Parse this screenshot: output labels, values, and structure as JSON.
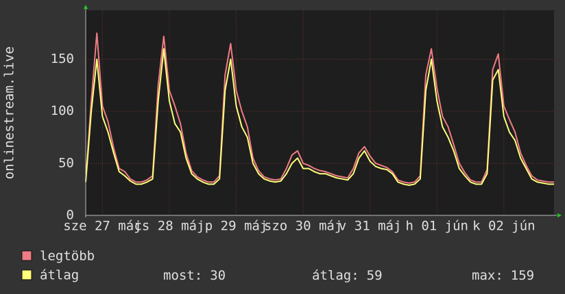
{
  "chart_data": {
    "type": "line",
    "y_label": "onlinestream.live",
    "x": [
      0,
      2,
      4,
      6,
      8,
      10,
      12,
      14,
      16,
      18,
      20,
      22,
      24,
      26,
      28,
      30,
      32,
      34,
      36,
      38,
      40,
      42,
      44,
      46,
      48,
      50,
      52,
      54,
      56,
      58,
      60,
      62,
      64,
      66,
      68,
      70,
      72,
      74,
      76,
      78,
      80,
      82,
      84,
      86,
      88,
      90,
      92,
      94,
      96,
      98,
      100,
      102,
      104,
      106,
      108,
      110,
      112,
      114,
      116,
      118,
      120,
      122,
      124,
      126,
      128,
      130,
      132,
      134,
      136,
      138,
      140,
      142,
      144,
      146,
      148,
      150,
      152,
      154,
      156,
      158,
      160,
      162,
      164,
      166,
      168
    ],
    "xlim": [
      0,
      168
    ],
    "xticks": [
      {
        "value": 6,
        "label": "sze 27 máj"
      },
      {
        "value": 30,
        "label": "cs 28 máj"
      },
      {
        "value": 54,
        "label": "p 29 máj"
      },
      {
        "value": 78,
        "label": "szo 30 máj"
      },
      {
        "value": 102,
        "label": "v 31 máj"
      },
      {
        "value": 126,
        "label": "h 01 jún"
      },
      {
        "value": 150,
        "label": "k 02 jún"
      }
    ],
    "ylim": [
      0,
      197
    ],
    "yticks": [
      0,
      50,
      100,
      150
    ],
    "grid": true,
    "series": [
      {
        "name": "legtöbb",
        "color": "#f07c84",
        "values": [
          34,
          110,
          175,
          105,
          90,
          65,
          45,
          42,
          35,
          32,
          32,
          34,
          38,
          125,
          172,
          120,
          105,
          88,
          60,
          43,
          37,
          34,
          32,
          32,
          38,
          135,
          165,
          120,
          100,
          85,
          55,
          43,
          37,
          35,
          34,
          35,
          45,
          58,
          62,
          50,
          48,
          45,
          43,
          42,
          40,
          38,
          37,
          36,
          45,
          60,
          66,
          57,
          50,
          48,
          46,
          42,
          34,
          32,
          31,
          32,
          38,
          135,
          160,
          122,
          95,
          85,
          68,
          50,
          41,
          34,
          32,
          32,
          44,
          140,
          155,
          105,
          92,
          80,
          60,
          48,
          38,
          34,
          33,
          32,
          32
        ]
      },
      {
        "name": "átlag",
        "color": "#ffff7a",
        "values": [
          32,
          100,
          150,
          95,
          80,
          60,
          42,
          38,
          33,
          30,
          30,
          32,
          35,
          110,
          160,
          110,
          88,
          80,
          55,
          40,
          35,
          32,
          30,
          30,
          35,
          120,
          150,
          105,
          85,
          75,
          50,
          40,
          35,
          33,
          32,
          33,
          40,
          50,
          55,
          45,
          45,
          42,
          40,
          40,
          38,
          36,
          35,
          34,
          40,
          55,
          62,
          52,
          47,
          45,
          44,
          40,
          32,
          30,
          29,
          30,
          35,
          120,
          150,
          110,
          85,
          75,
          62,
          45,
          38,
          32,
          30,
          30,
          40,
          130,
          140,
          95,
          80,
          72,
          55,
          45,
          35,
          32,
          31,
          30,
          30
        ]
      }
    ],
    "stats": [
      {
        "label": "most:",
        "value": 30
      },
      {
        "label": "átlag:",
        "value": 59
      },
      {
        "label": "max:",
        "value": 159
      }
    ]
  }
}
